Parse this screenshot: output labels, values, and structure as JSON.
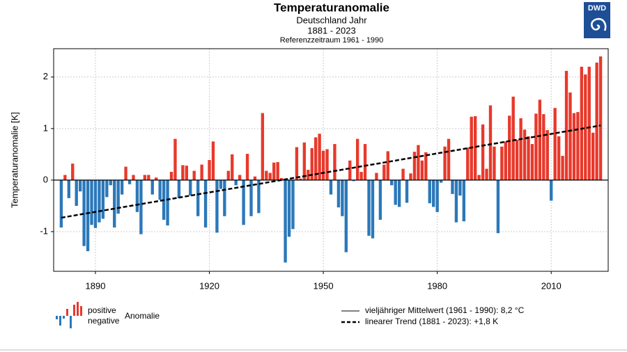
{
  "chart_data": {
    "type": "bar",
    "title": "Temperaturanomalie",
    "subtitle": "Deutschland Jahr",
    "period": "1881 - 2023",
    "reference": "Referenzzeitraum 1961 - 1990",
    "logo": "DWD",
    "y_label": "Temperaturanomalie [K]",
    "x": [
      1881,
      1882,
      1883,
      1884,
      1885,
      1886,
      1887,
      1888,
      1889,
      1890,
      1891,
      1892,
      1893,
      1894,
      1895,
      1896,
      1897,
      1898,
      1899,
      1900,
      1901,
      1902,
      1903,
      1904,
      1905,
      1906,
      1907,
      1908,
      1909,
      1910,
      1911,
      1912,
      1913,
      1914,
      1915,
      1916,
      1917,
      1918,
      1919,
      1920,
      1921,
      1922,
      1923,
      1924,
      1925,
      1926,
      1927,
      1928,
      1929,
      1930,
      1931,
      1932,
      1933,
      1934,
      1935,
      1936,
      1937,
      1938,
      1939,
      1940,
      1941,
      1942,
      1943,
      1944,
      1945,
      1946,
      1947,
      1948,
      1949,
      1950,
      1951,
      1952,
      1953,
      1954,
      1955,
      1956,
      1957,
      1958,
      1959,
      1960,
      1961,
      1962,
      1963,
      1964,
      1965,
      1966,
      1967,
      1968,
      1969,
      1970,
      1971,
      1972,
      1973,
      1974,
      1975,
      1976,
      1977,
      1978,
      1979,
      1980,
      1981,
      1982,
      1983,
      1984,
      1985,
      1986,
      1987,
      1988,
      1989,
      1990,
      1991,
      1992,
      1993,
      1994,
      1995,
      1996,
      1997,
      1998,
      1999,
      2000,
      2001,
      2002,
      2003,
      2004,
      2005,
      2006,
      2007,
      2008,
      2009,
      2010,
      2011,
      2012,
      2013,
      2014,
      2015,
      2016,
      2017,
      2018,
      2019,
      2020,
      2021,
      2022,
      2023
    ],
    "values": [
      -0.92,
      0.1,
      -0.35,
      0.32,
      -0.5,
      -0.22,
      -1.28,
      -1.38,
      -0.87,
      -0.93,
      -0.82,
      -0.75,
      -0.33,
      -0.1,
      -0.92,
      -0.65,
      -0.28,
      0.26,
      -0.08,
      0.1,
      -0.62,
      -1.05,
      0.1,
      0.1,
      -0.28,
      0.05,
      -0.38,
      -0.77,
      -0.88,
      0.16,
      0.8,
      -0.35,
      0.29,
      0.28,
      -0.3,
      0.18,
      -0.7,
      0.3,
      -0.92,
      0.39,
      0.75,
      -1.02,
      -0.17,
      -0.7,
      0.18,
      0.5,
      -0.1,
      0.1,
      -0.87,
      0.51,
      -0.7,
      0.07,
      -0.64,
      1.3,
      0.18,
      0.14,
      0.34,
      0.35,
      0.04,
      -1.6,
      -1.1,
      -0.95,
      0.64,
      0.03,
      0.73,
      0.2,
      0.62,
      0.83,
      0.9,
      0.57,
      0.6,
      -0.28,
      0.7,
      -0.53,
      -0.7,
      -1.4,
      0.38,
      -0.02,
      0.8,
      0.16,
      0.7,
      -1.08,
      -1.13,
      0.14,
      -0.77,
      0.3,
      0.56,
      -0.1,
      -0.48,
      -0.52,
      0.22,
      -0.44,
      0.13,
      0.55,
      0.68,
      0.38,
      0.54,
      -0.45,
      -0.52,
      -0.62,
      -0.05,
      0.65,
      0.8,
      -0.27,
      -0.82,
      -0.3,
      -0.8,
      0.63,
      1.23,
      1.24,
      0.1,
      1.08,
      0.22,
      1.45,
      0.65,
      -1.03,
      0.65,
      0.75,
      1.25,
      1.62,
      0.78,
      1.2,
      0.98,
      0.85,
      0.7,
      1.29,
      1.56,
      1.28,
      0.97,
      -0.4,
      1.4,
      0.85,
      0.47,
      2.12,
      1.7,
      1.3,
      1.32,
      2.2,
      2.05,
      2.2,
      0.92,
      2.28,
      2.4
    ],
    "positive_color": "#e8392b",
    "negative_color": "#2b78b9",
    "trend": {
      "x": [
        1881,
        2023
      ],
      "values": [
        -0.73,
        1.06
      ],
      "color": "#000000"
    },
    "xlim": [
      1879,
      2025
    ],
    "ylim": [
      -1.77,
      2.55
    ],
    "xticks": [
      1890,
      1920,
      1950,
      1980,
      2010
    ],
    "yticks": [
      -1,
      0,
      1,
      2
    ],
    "grid": true,
    "legend": {
      "positive": "positive",
      "negative": "negative",
      "anomaly": "Anomalie",
      "mean": "vieljähriger Mittelwert (1961 - 1990): 8,2 °C",
      "trend": "linearer Trend (1881 - 2023): +1,8 K"
    }
  }
}
